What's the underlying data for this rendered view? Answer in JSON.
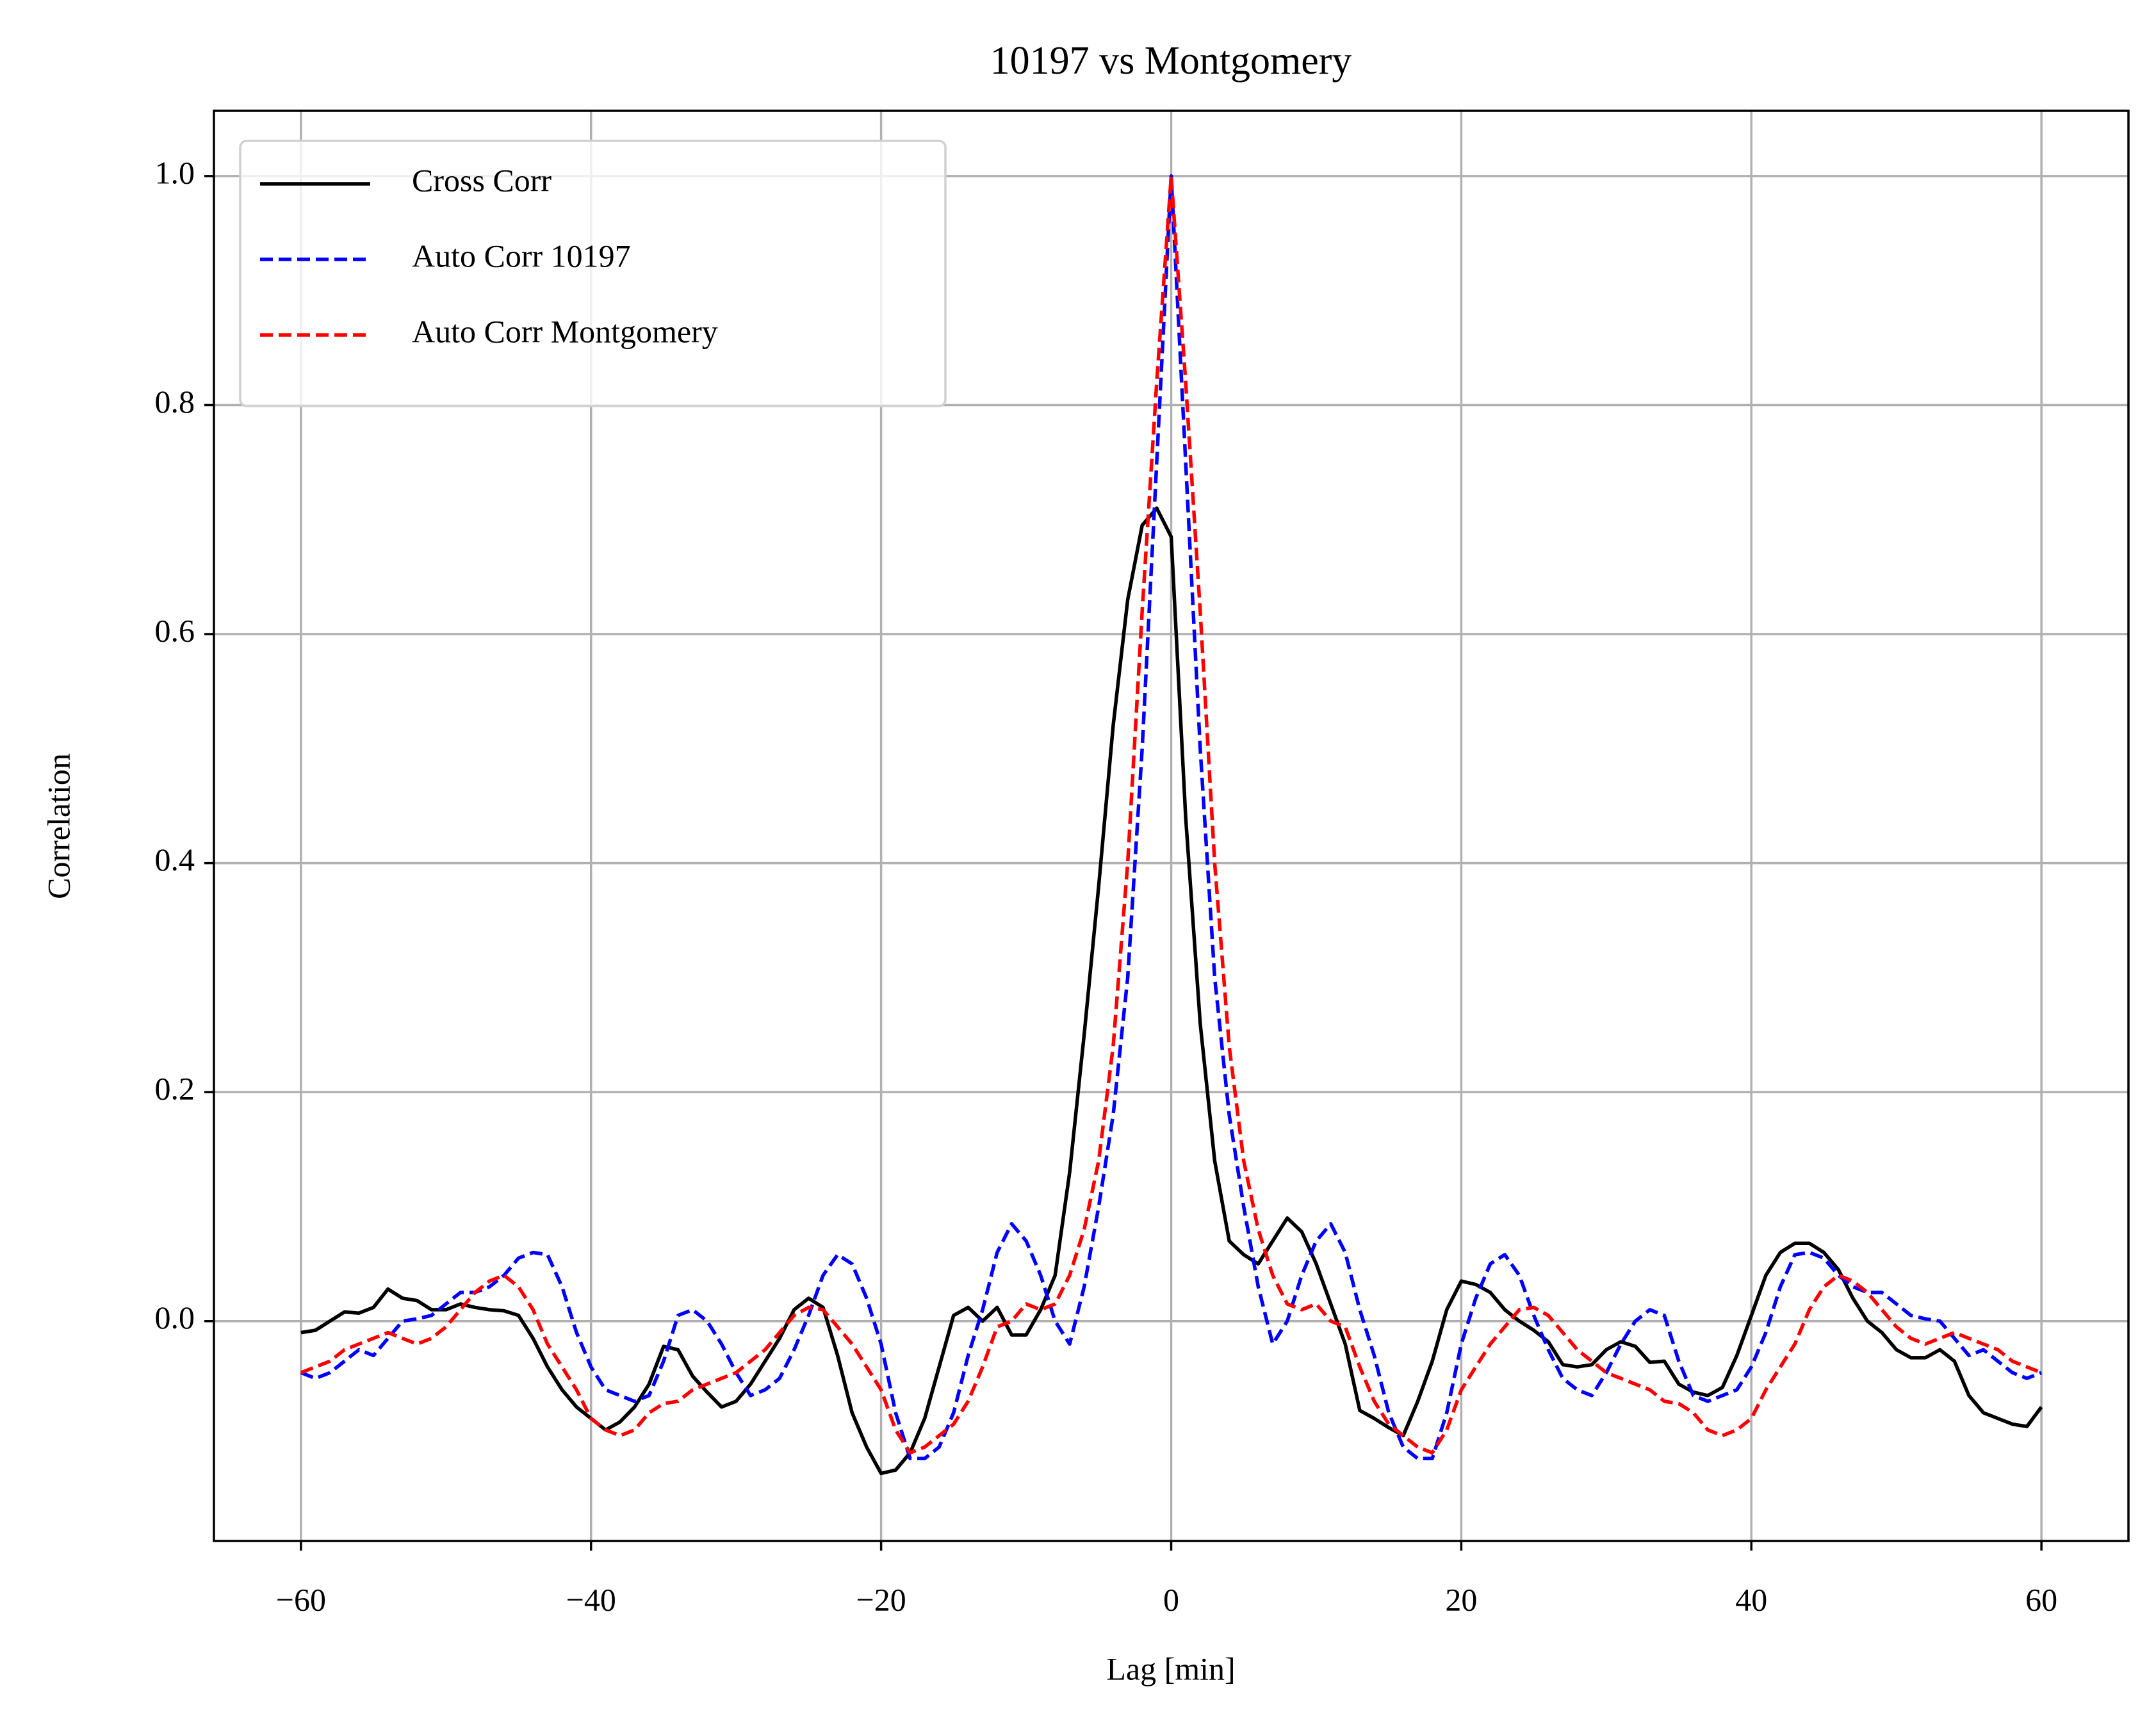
{
  "chart_data": {
    "type": "line",
    "title": "10197 vs Montgomery",
    "x_label": "Lag [min]",
    "y_label": "Correlation",
    "x": [
      -60,
      -59,
      -58,
      -57,
      -56,
      -55,
      -54,
      -53,
      -52,
      -51,
      -50,
      -49,
      -48,
      -47,
      -46,
      -45,
      -44,
      -43,
      -42,
      -41,
      -40,
      -39,
      -38,
      -37,
      -36,
      -35,
      -34,
      -33,
      -32,
      -31,
      -30,
      -29,
      -28,
      -27,
      -26,
      -25,
      -24,
      -23,
      -22,
      -21,
      -20,
      -19,
      -18,
      -17,
      -16,
      -15,
      -14,
      -13,
      -12,
      -11,
      -10,
      -9,
      -8,
      -7,
      -6,
      -5,
      -4,
      -3,
      -2,
      -1,
      0,
      1,
      2,
      3,
      4,
      5,
      6,
      7,
      8,
      9,
      10,
      11,
      12,
      13,
      14,
      15,
      16,
      17,
      18,
      19,
      20,
      21,
      22,
      23,
      24,
      25,
      26,
      27,
      28,
      29,
      30,
      31,
      32,
      33,
      34,
      35,
      36,
      37,
      38,
      39,
      40,
      41,
      42,
      43,
      44,
      45,
      46,
      47,
      48,
      49,
      50,
      51,
      52,
      53,
      54,
      55,
      56,
      57,
      58,
      59,
      60
    ],
    "series": [
      {
        "name": "Cross Corr",
        "color": "#000000",
        "dash": false,
        "values": [
          -0.01,
          -0.008,
          0.0,
          0.008,
          0.007,
          0.012,
          0.028,
          0.02,
          0.018,
          0.01,
          0.01,
          0.015,
          0.012,
          0.01,
          0.009,
          0.005,
          -0.015,
          -0.04,
          -0.06,
          -0.075,
          -0.085,
          -0.095,
          -0.088,
          -0.075,
          -0.055,
          -0.022,
          -0.025,
          -0.048,
          -0.062,
          -0.075,
          -0.07,
          -0.055,
          -0.035,
          -0.015,
          0.01,
          0.02,
          0.012,
          -0.03,
          -0.08,
          -0.11,
          -0.133,
          -0.13,
          -0.115,
          -0.085,
          -0.04,
          0.005,
          0.012,
          0.0,
          0.012,
          -0.012,
          -0.012,
          0.01,
          0.04,
          0.13,
          0.25,
          0.38,
          0.52,
          0.63,
          0.695,
          0.71,
          0.685,
          0.44,
          0.26,
          0.14,
          0.07,
          0.058,
          0.05,
          0.07,
          0.09,
          0.078,
          0.05,
          0.015,
          -0.02,
          -0.078,
          -0.085,
          -0.093,
          -0.1,
          -0.07,
          -0.035,
          0.01,
          0.035,
          0.032,
          0.025,
          0.01,
          0.0,
          -0.008,
          -0.018,
          -0.038,
          -0.04,
          -0.038,
          -0.025,
          -0.018,
          -0.022,
          -0.036,
          -0.035,
          -0.055,
          -0.062,
          -0.065,
          -0.058,
          -0.03,
          0.005,
          0.04,
          0.06,
          0.068,
          0.068,
          0.06,
          0.045,
          0.02,
          0.0,
          -0.01,
          -0.025,
          -0.032,
          -0.032,
          -0.025,
          -0.035,
          -0.065,
          -0.08,
          -0.085,
          -0.09,
          -0.092,
          -0.075
        ]
      },
      {
        "name": "Auto Corr 10197",
        "color": "#0000ff",
        "dash": true,
        "values": [
          -0.045,
          -0.05,
          -0.045,
          -0.035,
          -0.025,
          -0.03,
          -0.015,
          0.0,
          0.002,
          0.005,
          0.015,
          0.025,
          0.025,
          0.03,
          0.04,
          0.055,
          0.06,
          0.058,
          0.03,
          -0.01,
          -0.04,
          -0.06,
          -0.065,
          -0.07,
          -0.065,
          -0.035,
          0.005,
          0.01,
          0.0,
          -0.02,
          -0.045,
          -0.065,
          -0.06,
          -0.05,
          -0.025,
          0.005,
          0.04,
          0.058,
          0.05,
          0.02,
          -0.02,
          -0.08,
          -0.12,
          -0.12,
          -0.11,
          -0.08,
          -0.03,
          0.01,
          0.06,
          0.085,
          0.07,
          0.04,
          0.0,
          -0.02,
          0.03,
          0.1,
          0.18,
          0.3,
          0.5,
          0.75,
          1.0,
          0.75,
          0.5,
          0.3,
          0.18,
          0.1,
          0.03,
          -0.02,
          0.0,
          0.04,
          0.07,
          0.085,
          0.06,
          0.01,
          -0.03,
          -0.08,
          -0.11,
          -0.12,
          -0.12,
          -0.08,
          -0.02,
          0.02,
          0.05,
          0.058,
          0.04,
          0.005,
          -0.025,
          -0.05,
          -0.06,
          -0.065,
          -0.045,
          -0.02,
          0.0,
          0.01,
          0.005,
          -0.035,
          -0.065,
          -0.07,
          -0.065,
          -0.06,
          -0.04,
          -0.01,
          0.03,
          0.058,
          0.06,
          0.055,
          0.04,
          0.03,
          0.025,
          0.025,
          0.015,
          0.005,
          0.002,
          0.0,
          -0.015,
          -0.03,
          -0.025,
          -0.035,
          -0.045,
          -0.05,
          -0.045
        ]
      },
      {
        "name": "Auto Corr Montgomery",
        "color": "#ff0000",
        "dash": true,
        "values": [
          -0.045,
          -0.04,
          -0.035,
          -0.025,
          -0.02,
          -0.015,
          -0.01,
          -0.015,
          -0.02,
          -0.015,
          -0.005,
          0.01,
          0.025,
          0.035,
          0.04,
          0.03,
          0.01,
          -0.02,
          -0.04,
          -0.06,
          -0.085,
          -0.095,
          -0.1,
          -0.095,
          -0.08,
          -0.072,
          -0.07,
          -0.06,
          -0.055,
          -0.05,
          -0.045,
          -0.035,
          -0.025,
          -0.01,
          0.005,
          0.012,
          0.01,
          -0.005,
          -0.02,
          -0.04,
          -0.06,
          -0.095,
          -0.115,
          -0.11,
          -0.1,
          -0.09,
          -0.07,
          -0.04,
          -0.005,
          0.0,
          0.015,
          0.01,
          0.015,
          0.04,
          0.08,
          0.14,
          0.24,
          0.4,
          0.62,
          0.82,
          1.0,
          0.82,
          0.62,
          0.4,
          0.24,
          0.14,
          0.08,
          0.04,
          0.015,
          0.01,
          0.015,
          0.0,
          -0.005,
          -0.04,
          -0.07,
          -0.09,
          -0.1,
          -0.11,
          -0.115,
          -0.095,
          -0.06,
          -0.04,
          -0.02,
          -0.005,
          0.01,
          0.012,
          0.005,
          -0.01,
          -0.025,
          -0.035,
          -0.045,
          -0.05,
          -0.055,
          -0.06,
          -0.07,
          -0.072,
          -0.08,
          -0.095,
          -0.1,
          -0.095,
          -0.085,
          -0.06,
          -0.04,
          -0.02,
          0.01,
          0.03,
          0.04,
          0.035,
          0.025,
          0.01,
          -0.005,
          -0.015,
          -0.02,
          -0.015,
          -0.01,
          -0.015,
          -0.02,
          -0.025,
          -0.035,
          -0.04,
          -0.045
        ]
      }
    ],
    "xlim": [
      -66,
      66
    ],
    "ylim": [
      -0.192,
      1.057
    ],
    "xticks": [
      {
        "value": -60,
        "label": "−60"
      },
      {
        "value": -40,
        "label": "−40"
      },
      {
        "value": -20,
        "label": "−20"
      },
      0,
      20,
      40,
      60
    ],
    "yticks": [
      {
        "value": 0,
        "label": "0.0"
      },
      0.2,
      0.4,
      0.6,
      0.8,
      {
        "value": 1,
        "label": "1.0"
      }
    ],
    "grid": true,
    "legend": "upper-left"
  }
}
